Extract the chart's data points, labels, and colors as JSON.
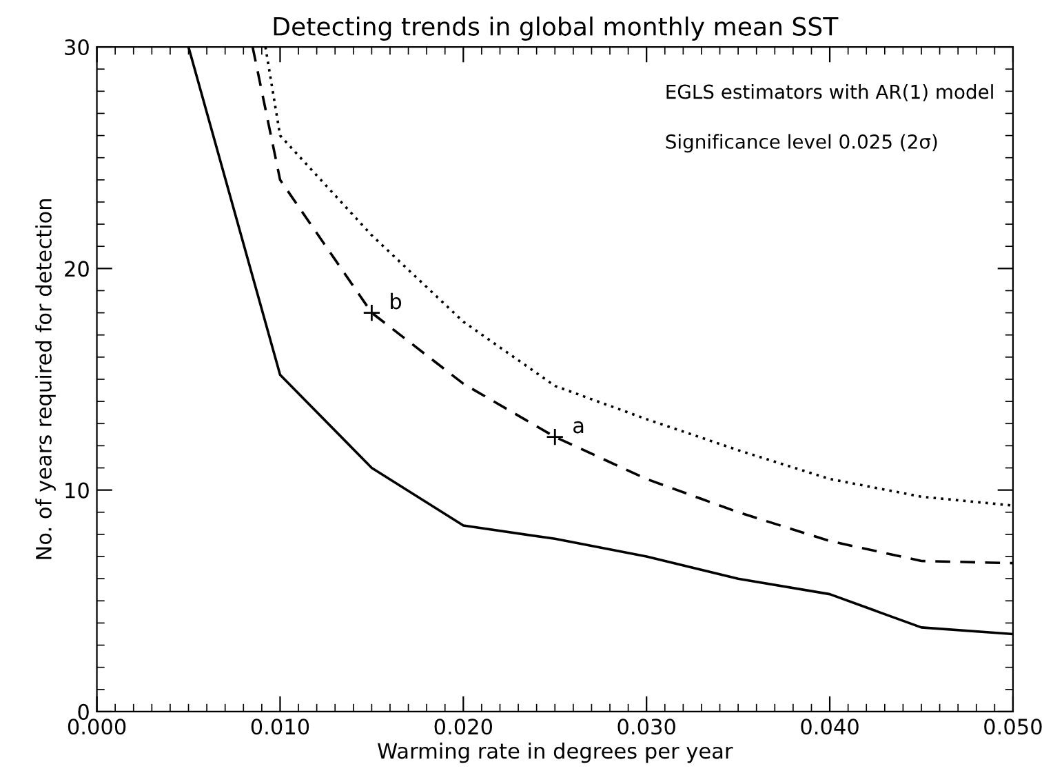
{
  "chart_data": {
    "type": "line",
    "title": "Detecting trends in global monthly mean SST",
    "xlabel": "Warming rate in degrees per year",
    "ylabel": "No. of years required for detection",
    "xlim": [
      0.0,
      0.05
    ],
    "xticks": [
      {
        "value": 0.0,
        "label": "0.000"
      },
      {
        "value": 0.01,
        "label": "0.010"
      },
      {
        "value": 0.02,
        "label": "0.020"
      },
      {
        "value": 0.03,
        "label": "0.030"
      },
      {
        "value": 0.04,
        "label": "0.040"
      },
      {
        "value": 0.05,
        "label": "0.050"
      }
    ],
    "ylim": [
      0,
      30
    ],
    "yticks": [
      0,
      10,
      20,
      30
    ],
    "grid": false,
    "legend": false,
    "series": [
      {
        "color": "#000000",
        "line_style": "solid",
        "x": [
          0.005,
          0.01,
          0.015,
          0.02,
          0.025,
          0.03,
          0.035,
          0.04,
          0.045,
          0.05
        ],
        "values": [
          30,
          15.2,
          11,
          8.4,
          7.8,
          7.0,
          6.0,
          5.3,
          3.8,
          3.5
        ]
      },
      {
        "color": "#000000",
        "line_style": "dashed",
        "x": [
          0.0085,
          0.01,
          0.015,
          0.02,
          0.025,
          0.03,
          0.035,
          0.04,
          0.045,
          0.05
        ],
        "values": [
          30,
          24,
          18,
          14.8,
          12.4,
          10.5,
          9.0,
          7.7,
          6.8,
          6.7
        ]
      },
      {
        "color": "#000000",
        "line_style": "dotted",
        "x": [
          0.0092,
          0.01,
          0.015,
          0.02,
          0.025,
          0.03,
          0.035,
          0.04,
          0.045,
          0.05
        ],
        "values": [
          30,
          26,
          21.5,
          17.6,
          14.7,
          13.2,
          11.8,
          10.5,
          9.7,
          9.3
        ]
      },
      {
        "type": "scatter",
        "marker": "cross",
        "color": "#000000",
        "x": [
          0.015,
          0.025
        ],
        "values": [
          18,
          12.4
        ]
      }
    ],
    "annotations": [
      {
        "text": "b",
        "x": 0.015,
        "y": 18
      },
      {
        "text": "a",
        "x": 0.025,
        "y": 12.4
      },
      "EGLS estimators with AR(1) model",
      "Significance level 0.025 (2σ)"
    ]
  }
}
